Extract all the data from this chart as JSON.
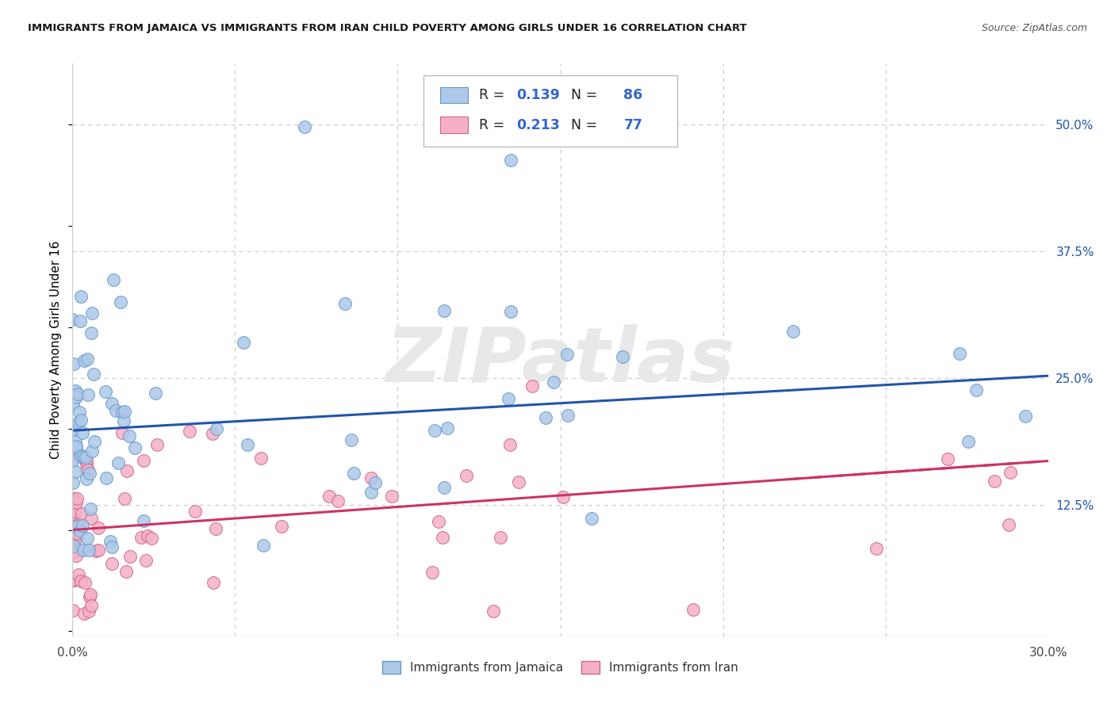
{
  "title": "IMMIGRANTS FROM JAMAICA VS IMMIGRANTS FROM IRAN CHILD POVERTY AMONG GIRLS UNDER 16 CORRELATION CHART",
  "source": "Source: ZipAtlas.com",
  "ylabel": "Child Poverty Among Girls Under 16",
  "xlim": [
    0.0,
    0.3
  ],
  "ylim": [
    -0.005,
    0.56
  ],
  "ytick_right_labels": [
    "50.0%",
    "37.5%",
    "25.0%",
    "12.5%"
  ],
  "ytick_right_positions": [
    0.5,
    0.375,
    0.25,
    0.125
  ],
  "jamaica_fill": "#adc8e8",
  "jamaica_edge": "#6699cc",
  "iran_fill": "#f5b0c8",
  "iran_edge": "#cc6688",
  "trend_jamaica_color": "#2255aa",
  "trend_iran_color": "#cc3366",
  "legend_R_color": "#000000",
  "legend_val_color": "#3366cc",
  "legend_R_jamaica": "0.139",
  "legend_N_jamaica": "86",
  "legend_R_iran": "0.213",
  "legend_N_iran": "77",
  "label_jamaica": "Immigrants from Jamaica",
  "label_iran": "Immigrants from Iran",
  "watermark_text": "ZIPatlas",
  "bg": "#ffffff",
  "grid_color": "#cccccc",
  "trend_j_x0": 0.0,
  "trend_j_x1": 0.3,
  "trend_j_y0": 0.198,
  "trend_j_y1": 0.252,
  "trend_i_x0": 0.0,
  "trend_i_x1": 0.3,
  "trend_i_y0": 0.1,
  "trend_i_y1": 0.168
}
